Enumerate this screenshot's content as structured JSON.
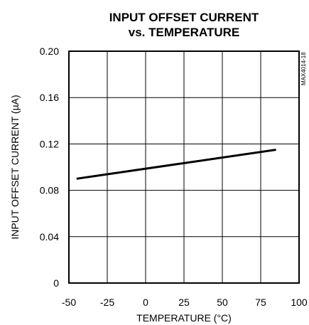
{
  "chart_data": {
    "type": "line",
    "title": [
      "INPUT OFFSET CURRENT",
      "vs. TEMPERATURE"
    ],
    "xlabel": "TEMPERATURE (°C)",
    "ylabel": "INPUT OFFSET CURRENT (µA)",
    "xlim": [
      -50,
      100
    ],
    "ylim": [
      0,
      0.2
    ],
    "xticks": [
      "-50",
      "-25",
      "0",
      "25",
      "50",
      "75",
      "100"
    ],
    "yticks": [
      "0",
      "0.04",
      "0.08",
      "0.12",
      "0.16",
      "0.20"
    ],
    "grid": true,
    "series": [
      {
        "x": [
          -45,
          85
        ],
        "y": [
          0.09,
          0.115
        ]
      }
    ],
    "annotation": "MAX4014-18"
  }
}
